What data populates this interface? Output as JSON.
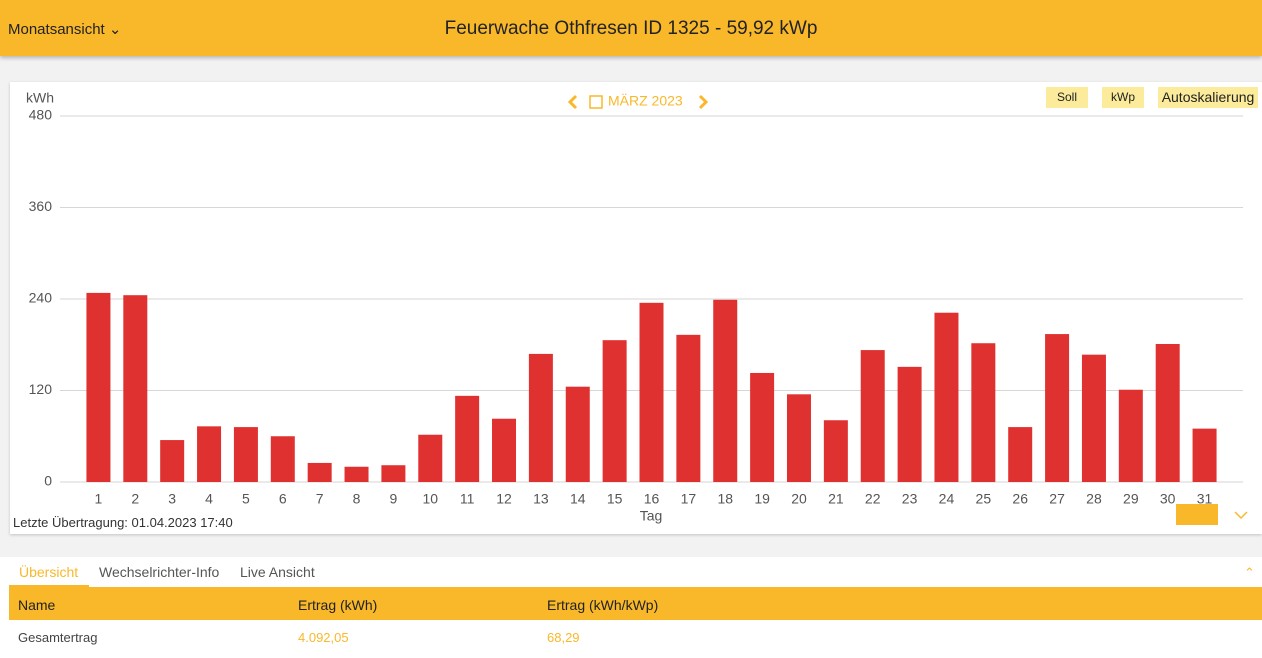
{
  "header": {
    "view_menu": "Monatsansicht",
    "title": "Feuerwache Othfresen ID 1325 - 59,92 kWp"
  },
  "navigation": {
    "period": "MÄRZ 2023"
  },
  "toolbar": {
    "buttons": [
      "Soll",
      "kWp",
      "Autoskalierung"
    ]
  },
  "chart_data": {
    "type": "bar",
    "y_label": "kWh",
    "x_label": "Tag",
    "categories": [
      "1",
      "2",
      "3",
      "4",
      "5",
      "6",
      "7",
      "8",
      "9",
      "10",
      "11",
      "12",
      "13",
      "14",
      "15",
      "16",
      "17",
      "18",
      "19",
      "20",
      "21",
      "22",
      "23",
      "24",
      "25",
      "26",
      "27",
      "28",
      "29",
      "30",
      "31"
    ],
    "values": [
      248,
      245,
      55,
      73,
      72,
      60,
      25,
      20,
      22,
      62,
      113,
      83,
      168,
      125,
      186,
      235,
      193,
      239,
      143,
      115,
      81,
      173,
      151,
      222,
      182,
      72,
      194,
      167,
      121,
      181,
      70
    ],
    "color": "#e03131",
    "ylim": [
      0,
      480
    ],
    "yticks": [
      0,
      120,
      240,
      360,
      480
    ],
    "grid": true
  },
  "last_transmission": "Letzte Übertragung: 01.04.2023 17:40",
  "tabs": [
    "Übersicht",
    "Wechselrichter-Info",
    "Live Ansicht"
  ],
  "table": {
    "columns": [
      "Name",
      "Ertrag (kWh)",
      "Ertrag (kWh/kWp)"
    ],
    "rows": [
      [
        "Gesamtertrag",
        "4.092,05",
        "68,29"
      ]
    ]
  }
}
